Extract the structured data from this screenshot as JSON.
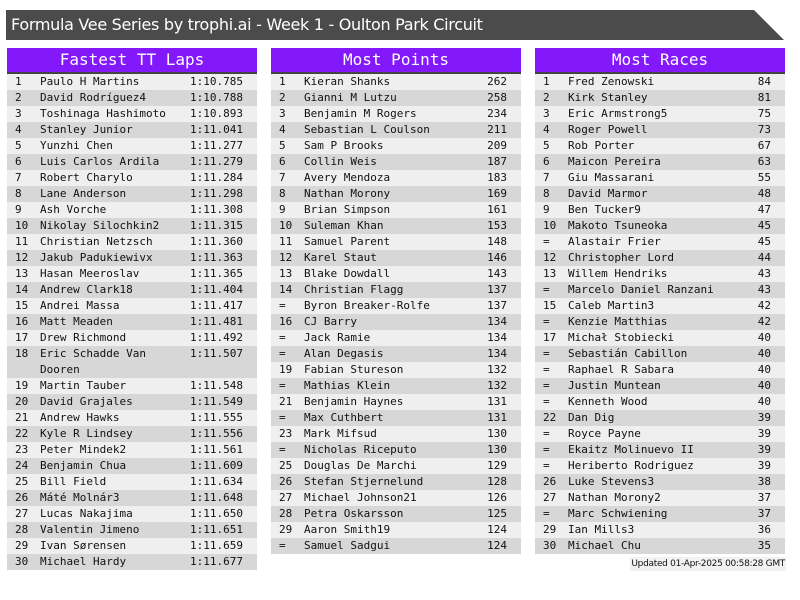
{
  "title": "Formula Vee Series by trophi.ai - Week 1 - Oulton Park Circuit",
  "accent_color": "#8318fb",
  "boards": [
    {
      "title": "Fastest TT Laps",
      "rows": [
        [
          "1",
          "Paulo H Martins",
          "1:10.785"
        ],
        [
          "2",
          "David Rodríguez4",
          "1:10.788"
        ],
        [
          "3",
          "Toshinaga Hashimoto",
          "1:10.893"
        ],
        [
          "4",
          "Stanley Junior",
          "1:11.041"
        ],
        [
          "5",
          "Yunzhi Chen",
          "1:11.277"
        ],
        [
          "6",
          "Luis Carlos Ardila",
          "1:11.279"
        ],
        [
          "7",
          "Robert Charylo",
          "1:11.284"
        ],
        [
          "8",
          "Lane Anderson",
          "1:11.298"
        ],
        [
          "9",
          "Ash Vorche",
          "1:11.308"
        ],
        [
          "10",
          "Nikolay Silochkin2",
          "1:11.315"
        ],
        [
          "11",
          "Christian Netzsch",
          "1:11.360"
        ],
        [
          "12",
          "Jakub Padukiewivx",
          "1:11.363"
        ],
        [
          "13",
          "Hasan Meeroslav",
          "1:11.365"
        ],
        [
          "14",
          "Andrew Clark18",
          "1:11.404"
        ],
        [
          "15",
          "Andrei Massa",
          "1:11.417"
        ],
        [
          "16",
          "Matt Meaden",
          "1:11.481"
        ],
        [
          "17",
          "Drew Richmond",
          "1:11.492"
        ],
        [
          "18",
          "Eric Schadde Van Dooren",
          "1:11.507"
        ],
        [
          "19",
          "Martin Tauber",
          "1:11.548"
        ],
        [
          "20",
          "David Grajales",
          "1:11.549"
        ],
        [
          "21",
          "Andrew Hawks",
          "1:11.555"
        ],
        [
          "22",
          "Kyle R Lindsey",
          "1:11.556"
        ],
        [
          "23",
          "Peter Mindek2",
          "1:11.561"
        ],
        [
          "24",
          "Benjamin Chua",
          "1:11.609"
        ],
        [
          "25",
          "Bill Field",
          "1:11.634"
        ],
        [
          "26",
          "Máté Molnár3",
          "1:11.648"
        ],
        [
          "27",
          "Lucas Nakajima",
          "1:11.650"
        ],
        [
          "28",
          "Valentin Jimeno",
          "1:11.651"
        ],
        [
          "29",
          "Ivan Sørensen",
          "1:11.659"
        ],
        [
          "30",
          "Michael Hardy",
          "1:11.677"
        ]
      ]
    },
    {
      "title": "Most Points",
      "rows": [
        [
          "1",
          "Kieran Shanks",
          "262"
        ],
        [
          "2",
          "Gianni M Lutzu",
          "258"
        ],
        [
          "3",
          "Benjamin M Rogers",
          "234"
        ],
        [
          "4",
          "Sebastian L Coulson",
          "211"
        ],
        [
          "5",
          "Sam P Brooks",
          "209"
        ],
        [
          "6",
          "Collin Weis",
          "187"
        ],
        [
          "7",
          "Avery Mendoza",
          "183"
        ],
        [
          "8",
          "Nathan Morony",
          "169"
        ],
        [
          "9",
          "Brian Simpson",
          "161"
        ],
        [
          "10",
          "Suleman Khan",
          "153"
        ],
        [
          "11",
          "Samuel Parent",
          "148"
        ],
        [
          "12",
          "Karel Staut",
          "146"
        ],
        [
          "13",
          "Blake Dowdall",
          "143"
        ],
        [
          "14",
          "Christian Flagg",
          "137"
        ],
        [
          "=",
          "Byron Breaker-Rolfe",
          "137"
        ],
        [
          "16",
          "CJ Barry",
          "134"
        ],
        [
          "=",
          "Jack Ramie",
          "134"
        ],
        [
          "=",
          "Alan Degasis",
          "134"
        ],
        [
          "19",
          "Fabian Stureson",
          "132"
        ],
        [
          "=",
          "Mathias Klein",
          "132"
        ],
        [
          "21",
          "Benjamin Haynes",
          "131"
        ],
        [
          "=",
          "Max Cuthbert",
          "131"
        ],
        [
          "23",
          "Mark Mifsud",
          "130"
        ],
        [
          "=",
          "Nicholas Riceputo",
          "130"
        ],
        [
          "25",
          "Douglas De Marchi",
          "129"
        ],
        [
          "26",
          "Stefan Stjernelund",
          "128"
        ],
        [
          "27",
          "Michael Johnson21",
          "126"
        ],
        [
          "28",
          "Petra Oskarsson",
          "125"
        ],
        [
          "29",
          "Aaron Smith19",
          "124"
        ],
        [
          "=",
          "Samuel Sadgui",
          "124"
        ]
      ]
    },
    {
      "title": "Most Races",
      "rows": [
        [
          "1",
          "Fred Zenowski",
          "84"
        ],
        [
          "2",
          "Kirk Stanley",
          "81"
        ],
        [
          "3",
          "Eric Armstrong5",
          "75"
        ],
        [
          "4",
          "Roger Powell",
          "73"
        ],
        [
          "5",
          "Rob Porter",
          "67"
        ],
        [
          "6",
          "Maicon Pereira",
          "63"
        ],
        [
          "7",
          "Giu Massarani",
          "55"
        ],
        [
          "8",
          "David Marmor",
          "48"
        ],
        [
          "9",
          "Ben Tucker9",
          "47"
        ],
        [
          "10",
          "Makoto Tsuneoka",
          "45"
        ],
        [
          "=",
          "Alastair Frier",
          "45"
        ],
        [
          "12",
          "Christopher Lord",
          "44"
        ],
        [
          "13",
          "Willem Hendriks",
          "43"
        ],
        [
          "=",
          "Marcelo Daniel Ranzani",
          "43"
        ],
        [
          "15",
          "Caleb Martin3",
          "42"
        ],
        [
          "=",
          "Kenzie Matthias",
          "42"
        ],
        [
          "17",
          "Michał Stobiecki",
          "40"
        ],
        [
          "=",
          "Sebastián Cabillon",
          "40"
        ],
        [
          "=",
          "Raphael R Sabara",
          "40"
        ],
        [
          "=",
          "Justin Muntean",
          "40"
        ],
        [
          "=",
          "Kenneth Wood",
          "40"
        ],
        [
          "22",
          "Dan Dig",
          "39"
        ],
        [
          "=",
          "Royce Payne",
          "39"
        ],
        [
          "=",
          "Ekaitz Molinuevo II",
          "39"
        ],
        [
          "=",
          "Heriberto Rodriguez",
          "39"
        ],
        [
          "26",
          "Luke Stevens3",
          "38"
        ],
        [
          "27",
          "Nathan Morony2",
          "37"
        ],
        [
          "=",
          "Marc Schwiening",
          "37"
        ],
        [
          "29",
          "Ian Mills3",
          "36"
        ],
        [
          "30",
          "Michael Chu",
          "35"
        ]
      ]
    }
  ],
  "footer": "Updated 01-Apr-2025 00:58:28 GMT"
}
